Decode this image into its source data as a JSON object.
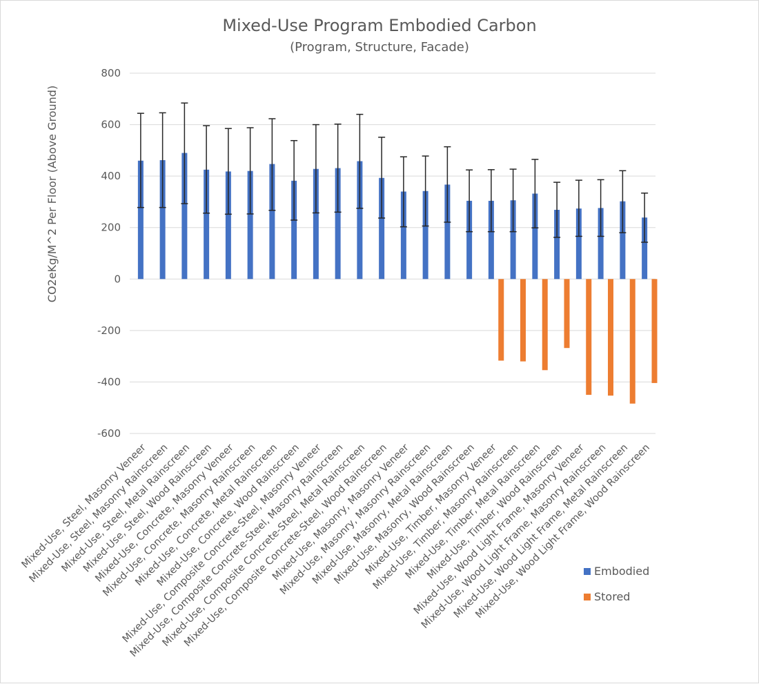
{
  "chart_data": {
    "type": "bar",
    "title": "Mixed-Use Program Embodied Carbon",
    "subtitle": "(Program, Structure, Facade)",
    "xlabel": "",
    "ylabel": "CO2eKg/M^2 Per Floor (Above Ground)",
    "ylim": [
      -600,
      800
    ],
    "yticks": [
      800,
      600,
      400,
      200,
      0,
      -200,
      -400,
      -600
    ],
    "grid": true,
    "legend_position": "bottom-right",
    "categories": [
      "Mixed-Use, Steel, Masonry Veneer",
      "Mixed-Use, Steel, Masonry Rainscreen",
      "Mixed-Use, Steel, Metal Rainscreen",
      "Mixed-Use, Steel, Wood Rainscreen",
      "Mixed-Use, Concrete, Masonry Veneer",
      "Mixed-Use, Concrete, Masonry Rainscreen",
      "Mixed-Use, Concrete, Metal Rainscreen",
      "Mixed-Use, Concrete, Wood Rainscreen",
      "Mixed-Use, Composite Concrete-Steel, Masonry Veneer",
      "Mixed-Use, Composite Concrete-Steel, Masonry Rainscreen",
      "Mixed-Use, Composite Concrete-Steel, Metal Rainscreen",
      "Mixed-Use, Composite Concrete-Steel, Wood Rainscreen",
      "Mixed-Use, Masonry, Masonry Veneer",
      "Mixed-Use, Masonry, Masonry Rainscreen",
      "Mixed-Use, Masonry, Metal Rainscreen",
      "Mixed-Use, Masonry, Wood Rainscreen",
      "Mixed-Use, Timber, Masonry Veneer",
      "Mixed-Use, Timber, Masonry Rainscreen",
      "Mixed-Use, Timber, Metal Rainscreen",
      "Mixed-Use, Timber, Wood Rainscreen",
      "Mixed-Use, Wood Light Frame, Masonry Veneer",
      "Mixed-Use, Wood Light Frame, Masonry Rainscreen",
      "Mixed-Use, Wood Light Frame, Metal Rainscreen",
      "Mixed-Use, Wood Light Frame, Wood Rainscreen"
    ],
    "series": [
      {
        "name": "Embodied",
        "color": "#4472c4",
        "values": [
          460,
          462,
          490,
          425,
          418,
          420,
          447,
          382,
          428,
          431,
          458,
          393,
          340,
          342,
          367,
          304,
          304,
          306,
          332,
          269,
          274,
          276,
          302,
          239
        ],
        "error_low": [
          278,
          278,
          293,
          256,
          252,
          253,
          267,
          229,
          257,
          260,
          275,
          237,
          203,
          206,
          221,
          184,
          184,
          184,
          199,
          162,
          166,
          166,
          180,
          143
        ],
        "error_high": [
          644,
          646,
          684,
          596,
          585,
          588,
          623,
          538,
          600,
          602,
          640,
          551,
          475,
          478,
          514,
          424,
          425,
          427,
          465,
          376,
          384,
          386,
          421,
          334
        ]
      },
      {
        "name": "Stored",
        "color": "#ed7d31",
        "values": [
          0,
          0,
          0,
          0,
          0,
          0,
          0,
          0,
          0,
          0,
          0,
          0,
          0,
          0,
          0,
          0,
          -317,
          -320,
          -354,
          -268,
          -450,
          -453,
          -484,
          -404
        ]
      }
    ]
  }
}
